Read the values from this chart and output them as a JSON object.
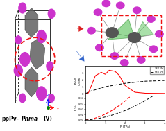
{
  "fig_width": 2.39,
  "fig_height": 1.89,
  "bg_color": "#ffffff",
  "crystal_bg": "#c8c8c8",
  "top_right_bg": "#d0d0d0",
  "rb_color": "#cc33cc",
  "pb_color": "#555555",
  "oct_color": "#606060",
  "bond_color": "#888888",
  "box_color": "#303030",
  "red_arrow_color": "#dd2222",
  "blue_arrow_color": "#3366cc",
  "red_dashed_color": "#ee1111",
  "green_fill_color": "#55bb55",
  "upper_red_label": "38 K LPa",
  "upper_black_label": "68 K LPa",
  "plot_bg": "#f5f5f5",
  "spine_color": "#222222",
  "title_text": "ppPv-",
  "title_italic": "Pnma",
  "title_suffix": "(V)"
}
